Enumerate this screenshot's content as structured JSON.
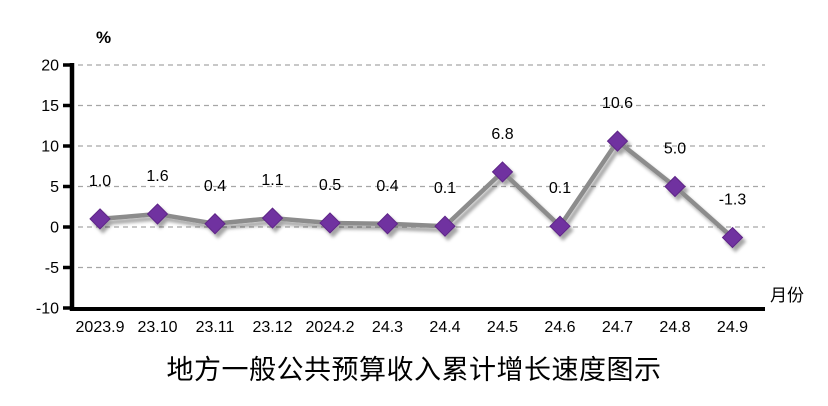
{
  "chart_data": {
    "type": "line",
    "title": "地方一般公共预算收入累计增长速度图示",
    "unit_label": "%",
    "xlabel": "月份",
    "categories": [
      "2023.9",
      "23.10",
      "23.11",
      "23.12",
      "2024.2",
      "24.3",
      "24.4",
      "24.5",
      "24.6",
      "24.7",
      "24.8",
      "24.9"
    ],
    "values": [
      1.0,
      1.6,
      0.4,
      1.1,
      0.5,
      0.4,
      0.1,
      6.8,
      0.1,
      10.6,
      5.0,
      -1.3
    ],
    "data_labels": [
      "1.0",
      "1.6",
      "0.4",
      "1.1",
      "0.5",
      "0.4",
      "0.1",
      "6.8",
      "0.1",
      "10.6",
      "5.0",
      "-1.3"
    ],
    "y_ticks": [
      20,
      15,
      10,
      5,
      0,
      -5,
      -10
    ],
    "ylim": [
      -10,
      20
    ],
    "grid": "dashed-horizontal",
    "legend": "none",
    "colors": {
      "marker": "#7030A0",
      "marker_edge": "#5E2787",
      "line": "#8C8C8C",
      "grid": "#A6A6A6",
      "axis": "#000000",
      "text": "#000000",
      "background": "#FFFFFF"
    }
  }
}
